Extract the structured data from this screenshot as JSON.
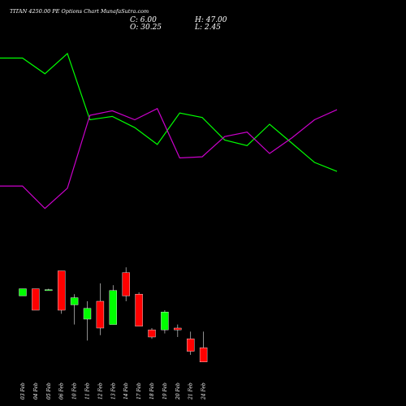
{
  "header": {
    "title": "TITAN 4250.00 PE Options Chart MunafaSutra.com",
    "close_text": "C: 6.00",
    "open_text": "O: 30.25",
    "high_text": "H: 47.00",
    "low_text": "L: 2.45"
  },
  "colors": {
    "background": "#000000",
    "up": "#00ff00",
    "down": "#ff0000",
    "line_a": "#00ff00",
    "line_b": "#cc00cc",
    "text": "#ffffff"
  },
  "chart_data": [
    {
      "type": "line",
      "series": [
        {
          "values": [
            0.9,
            0.9,
            0.76,
            0.94,
            0.35,
            0.38,
            0.28,
            0.13,
            0.41,
            0.37,
            0.17,
            0.12,
            0.31,
            0.14,
            -0.03,
            -0.11
          ]
        },
        {
          "values": [
            -0.24,
            -0.24,
            -0.44,
            -0.26,
            0.39,
            0.43,
            0.35,
            0.45,
            0.01,
            0.02,
            0.2,
            0.24,
            0.05,
            0.19,
            0.35,
            0.44
          ]
        }
      ],
      "ylim": [
        -0.5,
        1.2
      ]
    },
    {
      "type": "candlestick",
      "categories": [
        "03 Feb",
        "04 Feb",
        "05 Feb",
        "06 Feb",
        "10 Feb",
        "11 Feb",
        "12 Feb",
        "13 Feb",
        "14 Feb",
        "17 Feb",
        "18 Feb",
        "19 Feb",
        "20 Feb",
        "21 Feb",
        "24 Feb"
      ],
      "ohlc": [
        {
          "o": 33,
          "h": 37,
          "l": 33,
          "c": 37
        },
        {
          "o": 37,
          "h": 37,
          "l": 25,
          "c": 25
        },
        {
          "o": 36.5,
          "h": 37,
          "l": 36,
          "c": 36.5
        },
        {
          "o": 47,
          "h": 47,
          "l": 23,
          "c": 25
        },
        {
          "o": 28,
          "h": 34,
          "l": 17,
          "c": 32
        },
        {
          "o": 20,
          "h": 30,
          "l": 8,
          "c": 26
        },
        {
          "o": 30,
          "h": 40,
          "l": 11,
          "c": 15
        },
        {
          "o": 17,
          "h": 39,
          "l": 17,
          "c": 36
        },
        {
          "o": 46,
          "h": 49,
          "l": 30,
          "c": 33
        },
        {
          "o": 34,
          "h": 35,
          "l": 16,
          "c": 16
        },
        {
          "o": 14,
          "h": 15,
          "l": 9,
          "c": 10
        },
        {
          "o": 14,
          "h": 25,
          "l": 12,
          "c": 24
        },
        {
          "o": 15,
          "h": 17,
          "l": 10,
          "c": 14
        },
        {
          "o": 9,
          "h": 13,
          "l": 0,
          "c": 2
        },
        {
          "o": 4,
          "h": 13,
          "l": -4,
          "c": -4
        }
      ],
      "ylim": [
        -15,
        85
      ]
    }
  ]
}
